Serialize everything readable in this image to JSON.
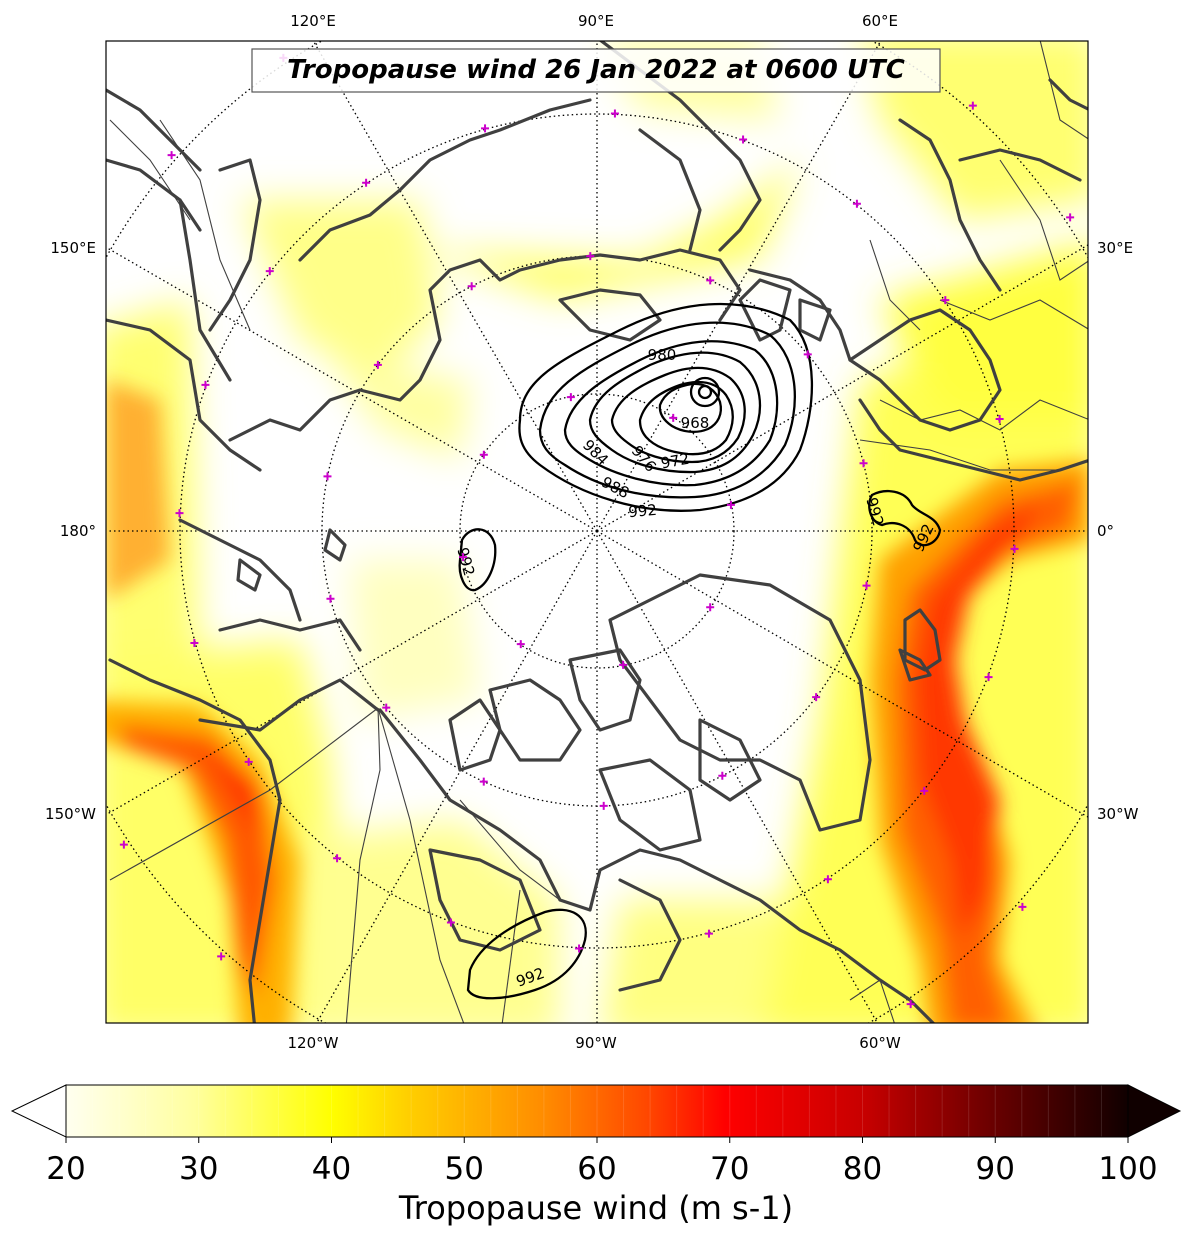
{
  "title": "Tropopause wind 26 Jan 2022 at 0600 UTC",
  "longitude_labels": {
    "top": [
      "120°E",
      "90°E",
      "60°E"
    ],
    "bottom": [
      "120°W",
      "90°W",
      "60°W"
    ],
    "left": [
      "150°E",
      "180°",
      "150°W"
    ],
    "right": [
      "30°E",
      "0°",
      "30°W"
    ]
  },
  "pressure_contours": {
    "labels": [
      "980",
      "968",
      "984",
      "976",
      "972",
      "988",
      "992",
      "992",
      "992",
      "992",
      "992"
    ]
  },
  "colorbar": {
    "title": "Tropopause wind (m s-1)",
    "tick_labels": [
      "20",
      "30",
      "40",
      "50",
      "60",
      "70",
      "80",
      "90",
      "100"
    ],
    "min": 20,
    "max": 100,
    "extend": "both",
    "colormap": "hot_r"
  },
  "markers": {
    "symbol": "+",
    "color": "#cc00cc"
  },
  "colors": {
    "wind_low": "#ffffd8",
    "wind_mid": "#ffff00",
    "wind_high": "#ff6a00",
    "wind_max": "#1a0000",
    "coastline": "#404040",
    "isobar": "#000000"
  }
}
